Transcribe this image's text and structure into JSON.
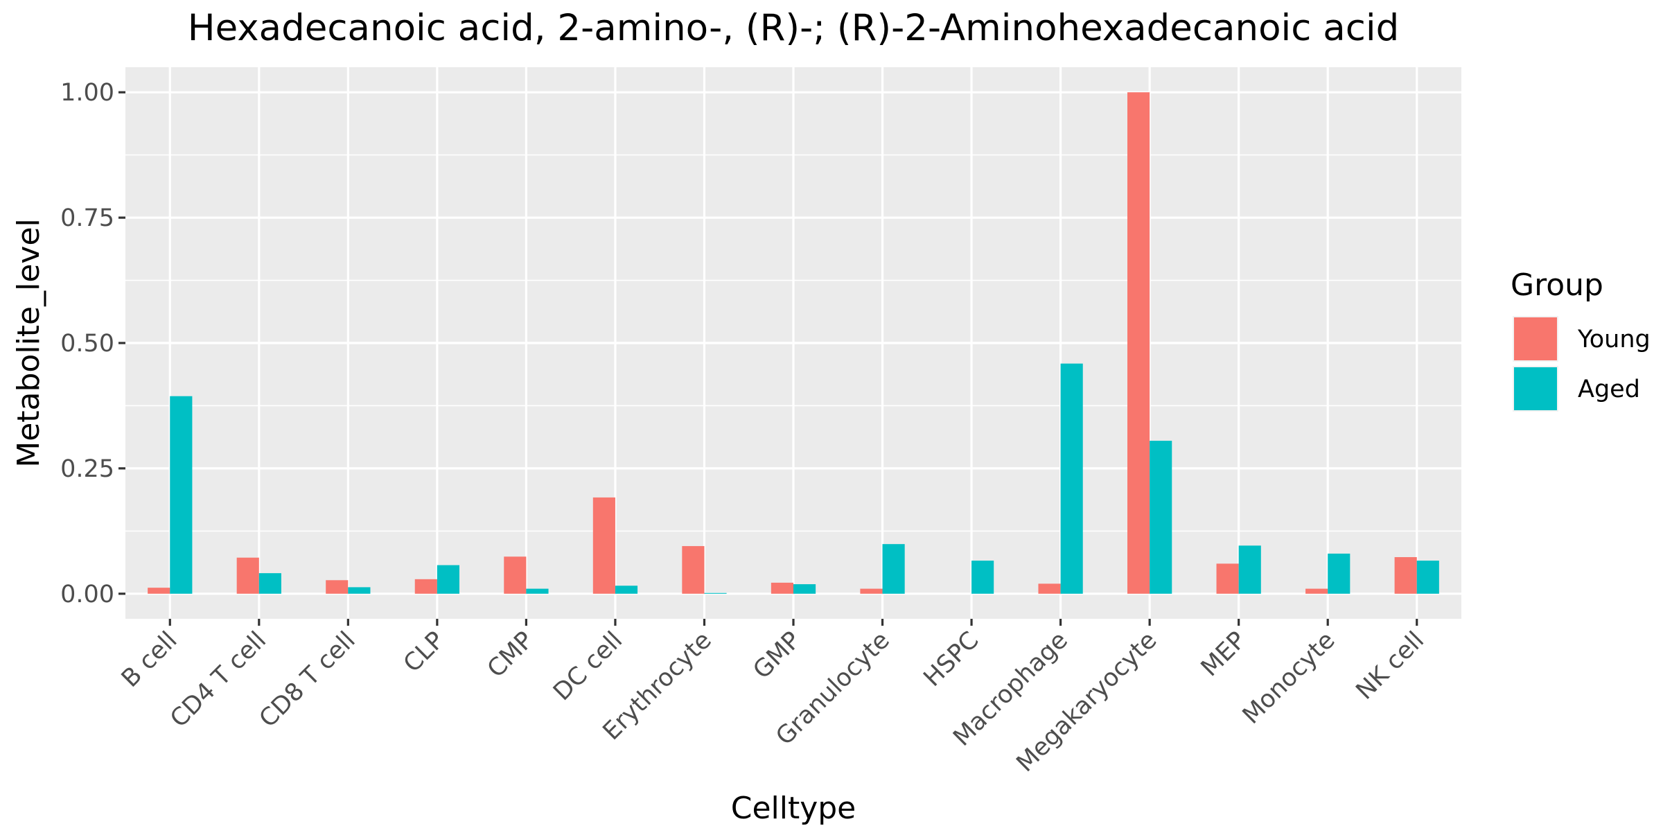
{
  "chart_data": {
    "type": "bar",
    "title": "Hexadecanoic acid, 2-amino-, (R)-; (R)-2-Aminohexadecanoic acid",
    "xlabel": "Celltype",
    "ylabel": "Metabolite_level",
    "ylim": [
      -0.05,
      1.05
    ],
    "yticks": [
      0.0,
      0.25,
      0.5,
      0.75,
      1.0
    ],
    "ytick_labels": [
      "0.00",
      "0.25",
      "0.50",
      "0.75",
      "1.00"
    ],
    "grid": true,
    "legend_position": "right",
    "legend_title": "Group",
    "categories": [
      "B cell",
      "CD4 T cell",
      "CD8 T cell",
      "CLP",
      "CMP",
      "DC cell",
      "Erythrocyte",
      "GMP",
      "Granulocyte",
      "HSPC",
      "Macrophage",
      "Megakaryocyte",
      "MEP",
      "Monocyte",
      "NK cell"
    ],
    "series": [
      {
        "name": "Young",
        "color": "#F8766D",
        "values": [
          0.012,
          0.072,
          0.027,
          0.029,
          0.074,
          0.192,
          0.095,
          0.022,
          0.01,
          0.0,
          0.02,
          1.0,
          0.06,
          0.01,
          0.073
        ]
      },
      {
        "name": "Aged",
        "color": "#00BFC4",
        "values": [
          0.394,
          0.041,
          0.013,
          0.057,
          0.01,
          0.016,
          0.0015,
          0.019,
          0.099,
          0.066,
          0.459,
          0.305,
          0.096,
          0.08,
          0.066
        ]
      }
    ],
    "panel_background": "#EBEBEB",
    "grid_color": "#FFFFFF"
  }
}
